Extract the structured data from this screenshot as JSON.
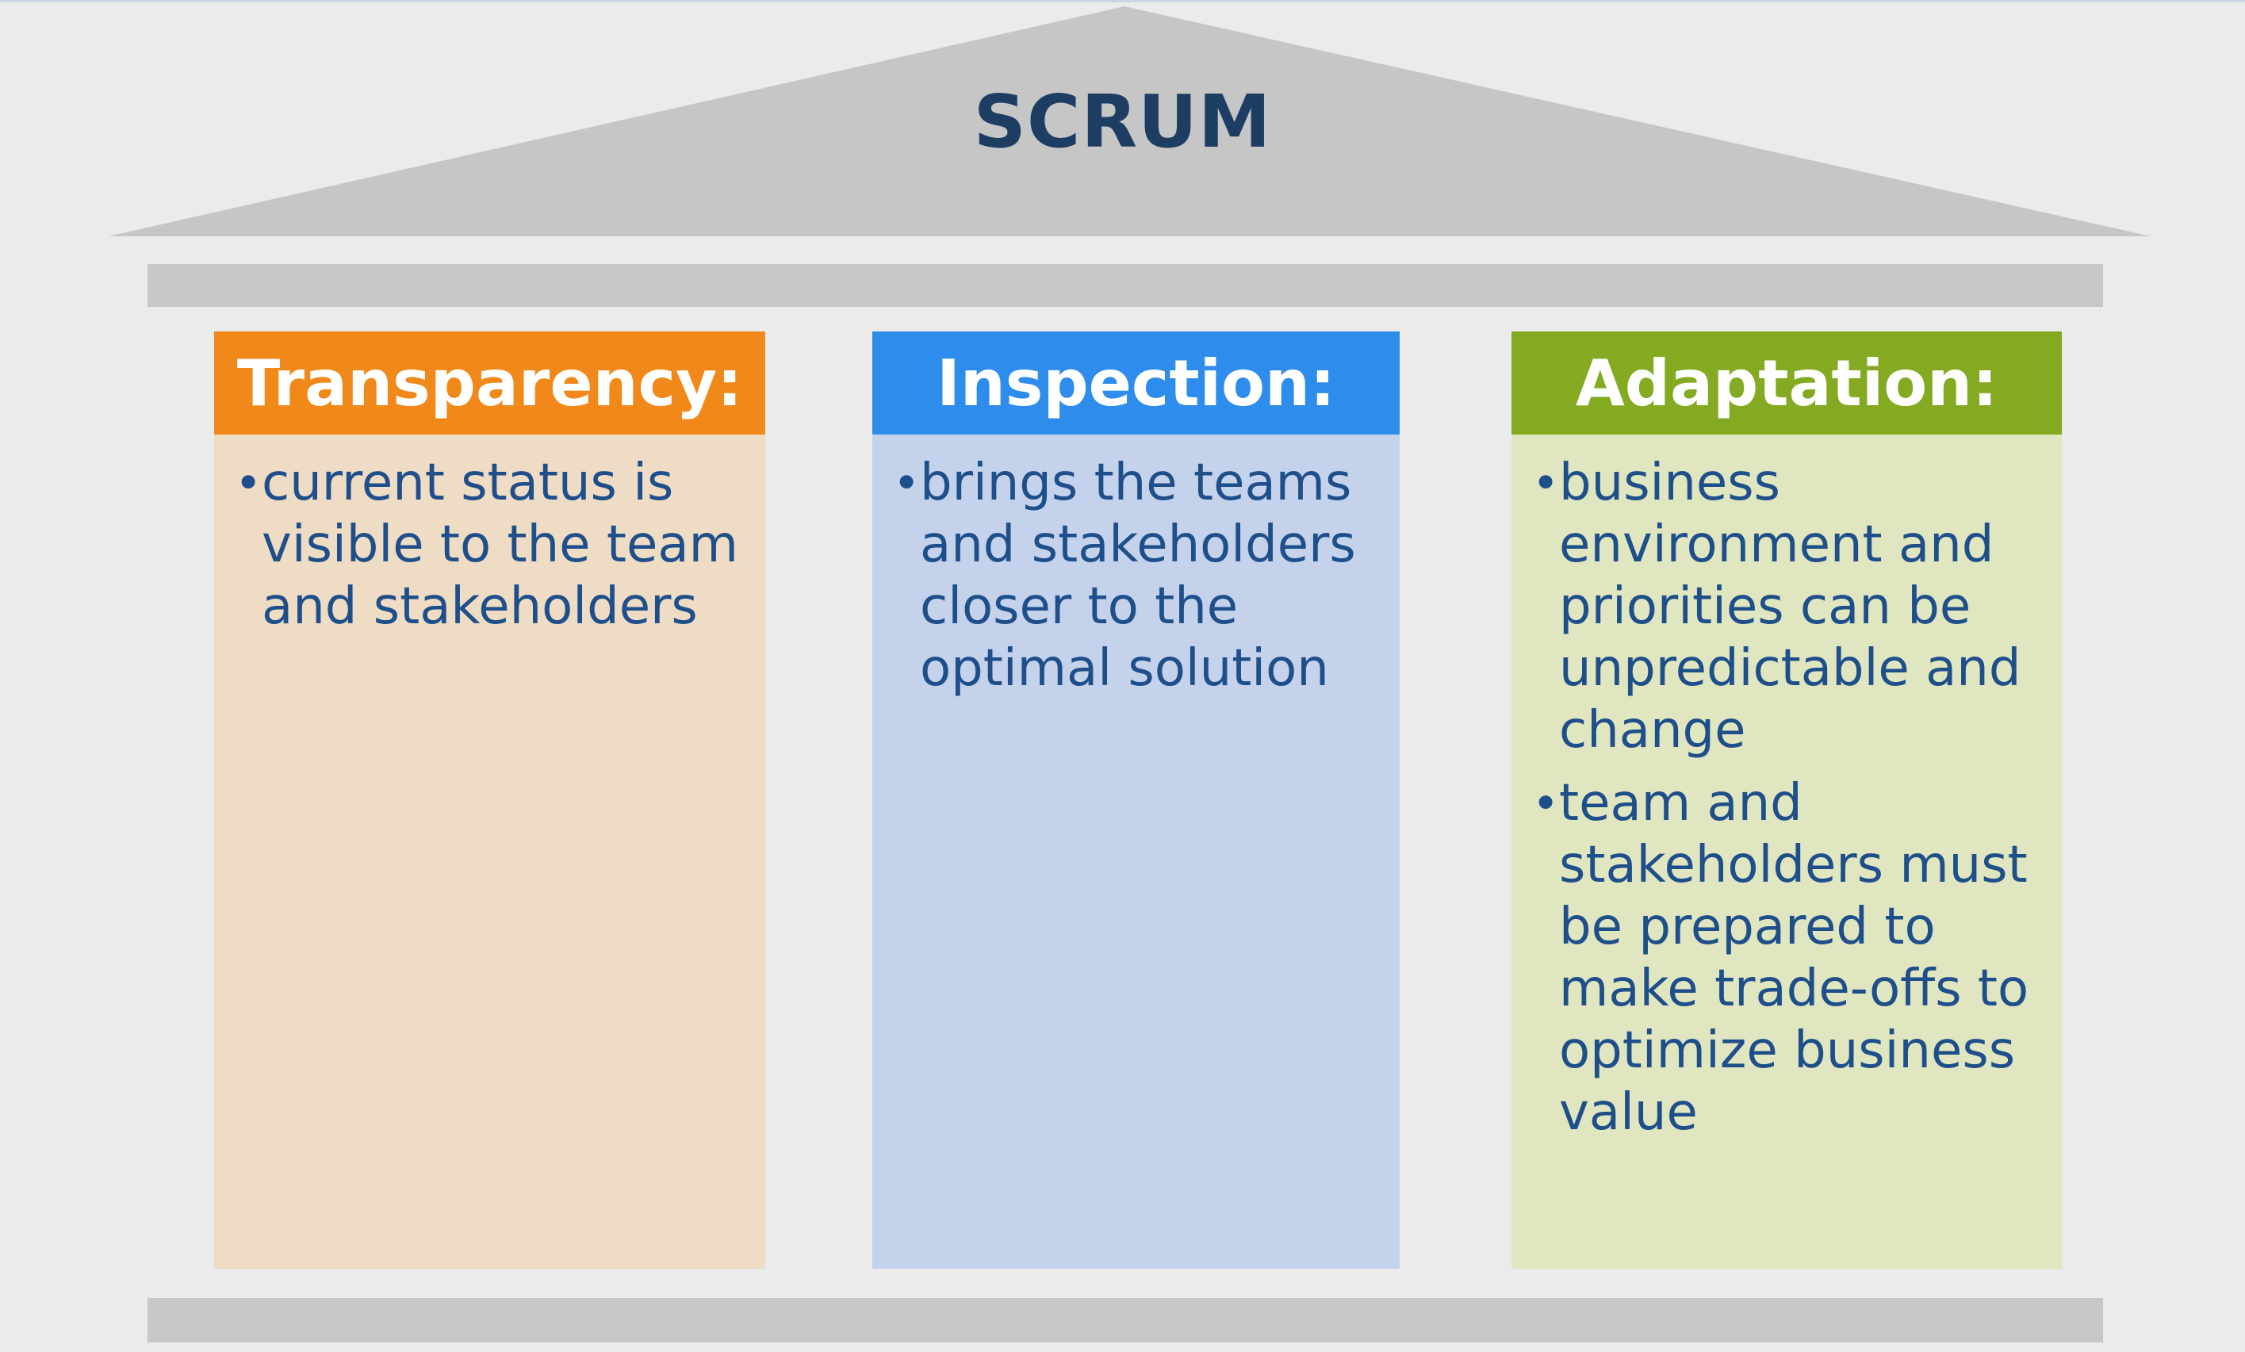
{
  "title": "SCRUM",
  "pillars": [
    {
      "heading": "Transparency:",
      "color": "#f0891a",
      "body_color": "#efdcc4",
      "bullets": [
        "current status is visible to the team and stakeholders"
      ]
    },
    {
      "heading": "Inspection:",
      "color": "#2e8cec",
      "body_color": "#c5d2ec",
      "bullets": [
        "brings the teams and stakeholders closer to the optimal solution"
      ]
    },
    {
      "heading": "Adaptation:",
      "color": "#83aa20",
      "body_color": "#e0e6c0",
      "bullets": [
        "business environment and priorities can be unpredictable and change",
        "team and stakeholders must be prepared to make trade-offs to optimize business value"
      ]
    }
  ]
}
